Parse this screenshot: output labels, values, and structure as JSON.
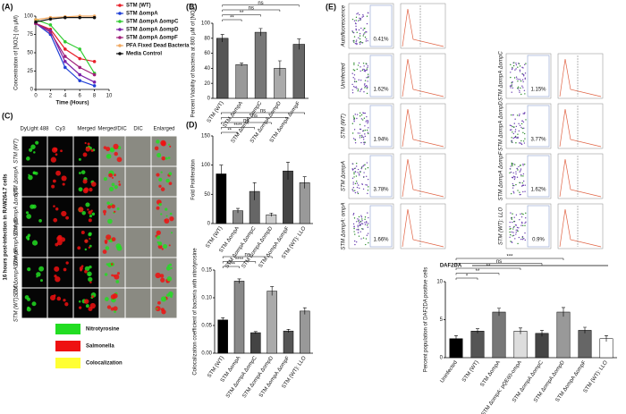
{
  "chart_data": [
    {
      "type": "line",
      "title": "(A)",
      "x_label": "Time (Hours)",
      "y_label": "Concentration of [NO2-] (in μM)",
      "x": [
        0,
        2,
        4,
        6,
        8
      ],
      "xlim": [
        0,
        10
      ],
      "xticks": [
        0,
        2,
        4,
        6,
        8,
        10
      ],
      "ylim": [
        0,
        100
      ],
      "yticks": [
        0,
        25,
        50,
        75,
        100
      ],
      "series": [
        {
          "name": "STM (WT)",
          "color": "#e8202a",
          "values": [
            90,
            82,
            55,
            42,
            38
          ]
        },
        {
          "name": "STM ΔompA",
          "color": "#1f3fd6",
          "values": [
            90,
            75,
            30,
            12,
            5
          ]
        },
        {
          "name": "STM ΔompA ΔompC",
          "color": "#33cc33",
          "values": [
            95,
            88,
            65,
            55,
            22
          ]
        },
        {
          "name": "STM ΔompA ΔompD",
          "color": "#7a1fa8",
          "values": [
            90,
            80,
            38,
            20,
            10
          ]
        },
        {
          "name": "STM ΔompA ΔompF",
          "color": "#a0207a",
          "values": [
            90,
            78,
            45,
            30,
            20
          ]
        },
        {
          "name": "PFA Fixed Dead Bacteria",
          "color": "#f0a860",
          "values": [
            95,
            98,
            99,
            100,
            100
          ]
        },
        {
          "name": "Media Control",
          "color": "#111111",
          "values": [
            92,
            96,
            98,
            98,
            98
          ]
        }
      ],
      "legend": "right"
    },
    {
      "type": "bar",
      "title": "(B)",
      "y_label": "Percent Viability of bacteria at 800 μM of [NO2-]",
      "categories": [
        "STM (WT)",
        "STM ΔompA",
        "STM ΔompA ΔompC",
        "STM ΔompA ΔompD",
        "STM ΔompA ΔompF"
      ],
      "values": [
        80,
        45,
        88,
        40,
        72
      ],
      "errors": [
        5,
        2,
        5,
        10,
        7
      ],
      "colors": [
        "#555555",
        "#999999",
        "#777777",
        "#aaaaaa",
        "#666666"
      ],
      "ylim": [
        0,
        100
      ],
      "yticks": [
        0,
        20,
        40,
        60,
        80,
        100
      ],
      "annotations": [
        "**",
        "**",
        "ns",
        "ns"
      ]
    },
    {
      "type": "bar",
      "title": "(D)",
      "y_label": "Fold Proliferation",
      "categories": [
        "STM (WT)",
        "STM ΔompA",
        "STM ΔompA ΔompC",
        "STM ΔompA ΔompD",
        "STM ΔompA ΔompF",
        "STM (WT): LLO"
      ],
      "values": [
        85,
        22,
        55,
        15,
        90,
        70
      ],
      "errors": [
        15,
        4,
        15,
        3,
        15,
        10
      ],
      "colors": [
        "#000000",
        "#888888",
        "#666666",
        "#cccccc",
        "#444444",
        "#999999"
      ],
      "ylim": [
        0,
        150
      ],
      "yticks": [
        0,
        50,
        100,
        150
      ],
      "annotations": [
        "**",
        "****",
        "ns",
        "ns",
        "ns"
      ]
    },
    {
      "type": "bar",
      "y_label": "Colocalization coefficient of bacteria with nitrotyrosine",
      "categories": [
        "STM (WT)",
        "STM ΔompA",
        "STM ΔompA ΔompC",
        "STM ΔompA ΔompD",
        "STM ΔompA ΔompF",
        "STM (WT): LLO"
      ],
      "values": [
        0.06,
        0.13,
        0.037,
        0.112,
        0.04,
        0.076
      ],
      "errors": [
        0.004,
        0.004,
        0.002,
        0.008,
        0.003,
        0.006
      ],
      "colors": [
        "#000000",
        "#888888",
        "#444444",
        "#aaaaaa",
        "#555555",
        "#999999"
      ],
      "ylim": [
        0,
        0.15
      ],
      "yticks": [
        {
          "value": 0,
          "label": "0.00"
        },
        0.05,
        {
          "value": 0.1,
          "label": "0.10"
        },
        0.15
      ],
      "annotations": [
        "****",
        "****",
        "ns"
      ]
    },
    {
      "type": "bar",
      "y_label": "Percent population of DAF2DA positive cells",
      "categories": [
        "Uninfected",
        "STM (WT)",
        "STM ΔompA",
        "STM ΔompA: pQE60-ompA",
        "STM ΔompA ΔompC",
        "STM ΔompA ΔompD",
        "STM ΔompA ΔompF",
        "STM (WT): LLO"
      ],
      "values": [
        2.5,
        3.5,
        6,
        3.5,
        3.2,
        6,
        3.6,
        2.5
      ],
      "errors": [
        0.4,
        0.3,
        0.5,
        0.4,
        0.4,
        0.6,
        0.4,
        0.4
      ],
      "colors": [
        "#000000",
        "#555555",
        "#777777",
        "#dddddd",
        "#444444",
        "#999999",
        "#666666",
        "#ffffff"
      ],
      "ylim": [
        0,
        10
      ],
      "yticks": [
        0,
        5,
        10
      ],
      "annotations": [
        "*",
        "**",
        "**",
        "ns",
        "***"
      ]
    }
  ],
  "panel_c": {
    "title": "(C)",
    "side_label": "16 hours post-infection in RAW264.7 cells",
    "columns": [
      "DyLight 488",
      "Cy3",
      "Merged",
      "Merged/DIC",
      "DIC",
      "Enlarged"
    ],
    "rows": [
      "STM (WT)",
      "STM ΔompA",
      "STM ΔompA ΔompC",
      "STM ΔompA ΔompD",
      "STM ΔompA ΔompF",
      "STM (WT): LLO"
    ],
    "legend": [
      {
        "name": "Nitrotyrosine",
        "color": "#22dd22"
      },
      {
        "name": "Salmonella",
        "color": "#ee1111"
      },
      {
        "name": "Colocalization",
        "color": "#ffff33"
      }
    ]
  },
  "panel_e": {
    "title": "(E)",
    "axis_label": "DAF2DA",
    "samples": [
      {
        "name": "Autofluorescence",
        "percent": "0.41%"
      },
      {
        "name": "Uninfected",
        "percent": "1.62%"
      },
      {
        "name": "STM (WT)",
        "percent": "1.94%"
      },
      {
        "name": "STM ΔompA",
        "percent": "3.78%"
      },
      {
        "name": "STM ΔompA: ompA",
        "percent": "1.66%"
      },
      {
        "name": "STM ΔompA ΔompC",
        "percent": "1.15%"
      },
      {
        "name": "STM ΔompA ΔompD",
        "percent": "3.77%"
      },
      {
        "name": "STM ΔompA ΔompF",
        "percent": "1.62%"
      },
      {
        "name": "STM (WT): LLO",
        "percent": "0.9%"
      }
    ]
  }
}
